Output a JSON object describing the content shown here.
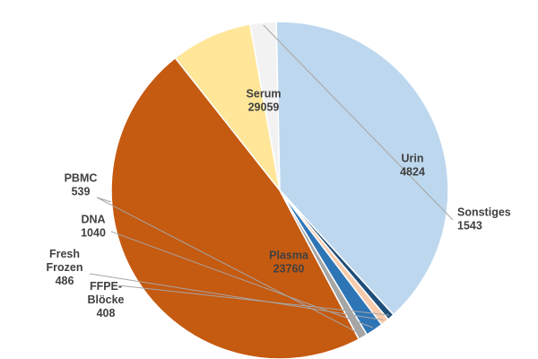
{
  "chart_data": {
    "type": "pie",
    "title": "",
    "slices": [
      {
        "label": [
          "Serum"
        ],
        "value": 29059,
        "value_label": "29059",
        "color": "#c55a11"
      },
      {
        "label": [
          "Urin"
        ],
        "value": 4824,
        "value_label": "4824",
        "color": "#ffe699"
      },
      {
        "label": [
          "Sonstiges"
        ],
        "value": 1543,
        "value_label": "1543",
        "color": "#f2f2f2"
      },
      {
        "label": [
          "Plasma"
        ],
        "value": 23760,
        "value_label": "23760",
        "color": "#bdd7ee"
      },
      {
        "label": [
          "FFPE-",
          "Blöcke"
        ],
        "value": 408,
        "value_label": "408",
        "color": "#1f4e79"
      },
      {
        "label": [
          "Fresh",
          "Frozen"
        ],
        "value": 486,
        "value_label": "486",
        "color": "#f8cbad"
      },
      {
        "label": [
          "DNA"
        ],
        "value": 1040,
        "value_label": "1040",
        "color": "#2e75b6"
      },
      {
        "label": [
          "PBMC"
        ],
        "value": 539,
        "value_label": "539",
        "color": "#a6a6a6"
      }
    ]
  }
}
